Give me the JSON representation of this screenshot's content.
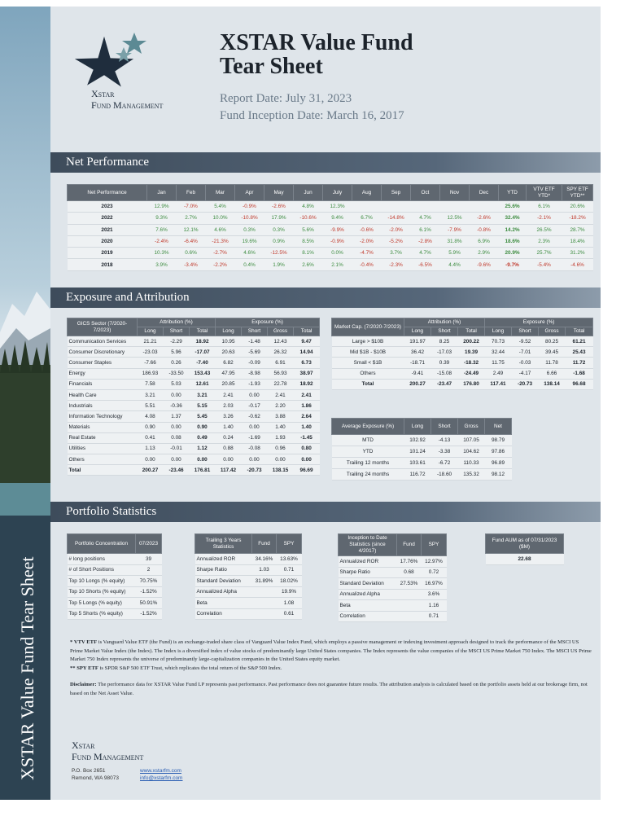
{
  "sidebar_title": "XSTAR Value Fund Tear Sheet",
  "header": {
    "logo_name": "Xstar",
    "logo_sub": "Fund Management",
    "title_line1": "XSTAR Value Fund",
    "title_line2": "Tear Sheet",
    "report_date": "Report Date: July 31, 2023",
    "inception_date": "Fund Inception Date: March 16, 2017"
  },
  "net_performance": {
    "section_title": "Net Performance",
    "columns": [
      "Net Performance",
      "Jan",
      "Feb",
      "Mar",
      "Apr",
      "May",
      "Jun",
      "July",
      "Aug",
      "Sep",
      "Oct",
      "Nov",
      "Dec",
      "YTD",
      "VTV ETF YTD*",
      "SPY ETF YTD**"
    ],
    "rows": [
      [
        "2023",
        "12.9%",
        "-7.0%",
        "5.4%",
        "-0.9%",
        "-2.6%",
        "4.8%",
        "12.3%",
        null,
        null,
        null,
        null,
        null,
        "25.6%",
        "6.1%",
        "20.6%"
      ],
      [
        "2022",
        "9.3%",
        "2.7%",
        "10.0%",
        "-10.8%",
        "17.9%",
        "-10.6%",
        "9.4%",
        "6.7%",
        "-14.8%",
        "4.7%",
        "12.5%",
        "-2.6%",
        "32.4%",
        "-2.1%",
        "-18.2%"
      ],
      [
        "2021",
        "7.6%",
        "12.1%",
        "4.6%",
        "0.3%",
        "0.3%",
        "5.6%",
        "-9.9%",
        "-0.6%",
        "-2.0%",
        "6.1%",
        "-7.9%",
        "-0.8%",
        "14.2%",
        "26.5%",
        "28.7%"
      ],
      [
        "2020",
        "-2.4%",
        "-6.4%",
        "-21.3%",
        "19.6%",
        "0.9%",
        "8.5%",
        "-0.9%",
        "-2.0%",
        "-5.2%",
        "-2.8%",
        "31.8%",
        "6.9%",
        "18.6%",
        "2.3%",
        "18.4%"
      ],
      [
        "2019",
        "10.3%",
        "0.6%",
        "-2.7%",
        "4.6%",
        "-12.5%",
        "8.1%",
        "0.0%",
        "-4.7%",
        "3.7%",
        "4.7%",
        "5.9%",
        "2.9%",
        "20.9%",
        "25.7%",
        "31.2%"
      ],
      [
        "2018",
        "3.9%",
        "-3.4%",
        "-2.2%",
        "0.4%",
        "1.9%",
        "2.6%",
        "2.1%",
        "-0.4%",
        "-2.3%",
        "-6.5%",
        "4.4%",
        "-9.6%",
        "-9.7%",
        "-5.4%",
        "-4.6%"
      ]
    ]
  },
  "exposure": {
    "section_title": "Exposure and Attribution",
    "sector_table": {
      "label_header": "GICS Sector (7/2020-7/2023)",
      "group_headers": [
        "Attribution (%)",
        "Exposure (%)"
      ],
      "columns": [
        "Long",
        "Short",
        "Total",
        "Long",
        "Short",
        "Gross",
        "Total"
      ],
      "rows": [
        [
          "Communication Services",
          "21.21",
          "-2.29",
          "18.92",
          "10.95",
          "-1.48",
          "12.43",
          "9.47"
        ],
        [
          "Consumer Discretionary",
          "-23.03",
          "5.96",
          "-17.07",
          "20.63",
          "-5.69",
          "26.32",
          "14.94"
        ],
        [
          "Consumer Staples",
          "-7.66",
          "0.26",
          "-7.40",
          "6.82",
          "-0.09",
          "6.91",
          "6.73"
        ],
        [
          "Energy",
          "186.93",
          "-33.50",
          "153.43",
          "47.95",
          "-8.98",
          "56.93",
          "38.97"
        ],
        [
          "Financials",
          "7.58",
          "5.03",
          "12.61",
          "20.85",
          "-1.93",
          "22.78",
          "18.92"
        ],
        [
          "Health Care",
          "3.21",
          "0.00",
          "3.21",
          "2.41",
          "0.00",
          "2.41",
          "2.41"
        ],
        [
          "Industrials",
          "5.51",
          "-0.36",
          "5.15",
          "2.03",
          "-0.17",
          "2.20",
          "1.86"
        ],
        [
          "Information Technology",
          "4.08",
          "1.37",
          "5.45",
          "3.26",
          "-0.62",
          "3.88",
          "2.64"
        ],
        [
          "Materials",
          "0.90",
          "0.00",
          "0.90",
          "1.40",
          "0.00",
          "1.40",
          "1.40"
        ],
        [
          "Real Estate",
          "0.41",
          "0.08",
          "0.49",
          "0.24",
          "-1.69",
          "1.93",
          "-1.45"
        ],
        [
          "Utilities",
          "1.13",
          "-0.01",
          "1.12",
          "0.88",
          "-0.08",
          "0.96",
          "0.80"
        ],
        [
          "Others",
          "0.00",
          "0.00",
          "0.00",
          "0.00",
          "0.00",
          "0.00",
          "0.00"
        ],
        [
          "Total",
          "200.27",
          "-23.46",
          "176.81",
          "117.42",
          "-20.73",
          "138.15",
          "96.69"
        ]
      ]
    },
    "market_cap_table": {
      "label_header": "Market Cap. (7/2020-7/2023)",
      "group_headers": [
        "Attribution (%)",
        "Exposure (%)"
      ],
      "columns": [
        "Long",
        "Short",
        "Total",
        "Long",
        "Short",
        "Gross",
        "Total"
      ],
      "rows": [
        [
          "Large > $10B",
          "191.97",
          "8.25",
          "200.22",
          "70.73",
          "-9.52",
          "80.25",
          "61.21"
        ],
        [
          "Mid $1B - $10B",
          "36.42",
          "-17.03",
          "19.39",
          "32.44",
          "-7.01",
          "39.45",
          "25.43"
        ],
        [
          "Small < $1B",
          "-18.71",
          "0.39",
          "-18.32",
          "11.75",
          "-0.03",
          "11.78",
          "11.72"
        ],
        [
          "Others",
          "-9.41",
          "-15.08",
          "-24.49",
          "2.49",
          "-4.17",
          "6.66",
          "-1.68"
        ],
        [
          "Total",
          "200.27",
          "-23.47",
          "176.80",
          "117.41",
          "-20.73",
          "138.14",
          "96.68"
        ]
      ]
    },
    "average_exposure": {
      "columns": [
        "Average Exposure (%)",
        "Long",
        "Short",
        "Gross",
        "Net"
      ],
      "rows": [
        [
          "MTD",
          "102.92",
          "-4.13",
          "107.05",
          "98.79"
        ],
        [
          "YTD",
          "101.24",
          "-3.38",
          "104.62",
          "97.86"
        ],
        [
          "Trailing 12 months",
          "103.61",
          "-6.72",
          "110.33",
          "96.89"
        ],
        [
          "Trailing 24 months",
          "116.72",
          "-18.60",
          "135.32",
          "98.12"
        ]
      ]
    }
  },
  "portfolio_statistics": {
    "section_title": "Portfolio Statistics",
    "tables": [
      {
        "columns": [
          "Portfolio Concentration",
          "07/2023"
        ],
        "rows": [
          [
            "# long positions",
            "39"
          ],
          [
            "# of Short Positions",
            "2"
          ],
          [
            "Top 10 Longs (% equity)",
            "70.75%"
          ],
          [
            "Top 10 Shorts (% equity)",
            "-1.52%"
          ],
          [
            "Top 5 Longs (% equity)",
            "50.91%"
          ],
          [
            "Top 5 Shorts (% equity)",
            "-1.52%"
          ]
        ]
      },
      {
        "columns": [
          "Trailing 3 Years Statistics",
          "Fund",
          "SPY"
        ],
        "rows": [
          [
            "Annualized ROR",
            "34.16%",
            "13.63%"
          ],
          [
            "Sharpe Ratio",
            "1.03",
            "0.71"
          ],
          [
            "Standard Deviation",
            "31.89%",
            "18.02%"
          ],
          [
            "Annualized Alpha",
            null,
            "19.9%"
          ],
          [
            "Beta",
            null,
            "1.08"
          ],
          [
            "Correlation",
            null,
            "0.61"
          ]
        ]
      },
      {
        "columns": [
          "Inception to Date Statistics (since 4/2017)",
          "Fund",
          "SPY"
        ],
        "rows": [
          [
            "Annualized ROR",
            "17.76%",
            "12.97%"
          ],
          [
            "Sharpe Ratio",
            "0.68",
            "0.72"
          ],
          [
            "Standard Deviation",
            "27.53%",
            "16.97%"
          ],
          [
            "Annualized Alpha",
            null,
            "3.6%"
          ],
          [
            "Beta",
            null,
            "1.16"
          ],
          [
            "Correlation",
            null,
            "0.71"
          ]
        ]
      },
      {
        "columns": [
          "Fund AUM as of 07/31/2023 ($M)"
        ],
        "rows": [
          [
            "22.68"
          ]
        ]
      }
    ]
  },
  "notes": [
    {
      "lead": "* VTV ETF",
      "text": " is Vanguard Value ETF (the Fund) is an exchange-traded share class of Vanguard Value Index Fund, which employs a passive management or indexing investment approach designed to track the performance of the MSCI US Prime Market Value Index (the Index). The Index is a diversified index of value stocks of predominantly large United States companies. The Index represents the value companies of the MSCI US Prime Market 750 Index. The MSCI US Prime Market 750 Index represents the universe of predominantly large-capitalization companies in the United States equity market."
    },
    {
      "lead": "** SPY ETF",
      "text": " is SPDR S&P 500 ETF Trust, which replicates the total return of the S&P 500 Index."
    }
  ],
  "disclaimer": {
    "lead": "Disclaimer:",
    "text": " The performance data for XSTAR Value Fund LP represents past performance. Past performance does not guarantee future results. The attribution analysis is calculated based on the portfolio assets held at our brokerage firm, not based on the Net Asset Value."
  },
  "footer": {
    "logo_name": "Xstar",
    "logo_sub": "Fund Management",
    "address_line1": "P.O. Box 2651",
    "address_line2": "Remond, WA 98073",
    "website": "www.xstarfm.com",
    "email": "info@xstarfm.com"
  }
}
